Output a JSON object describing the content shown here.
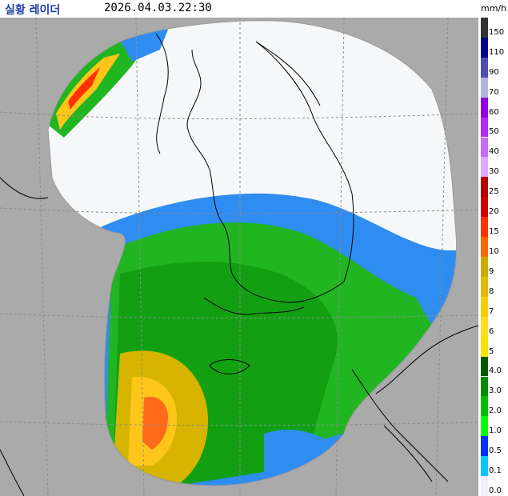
{
  "header": {
    "title": "실황 레이더",
    "timestamp": "2026.04.03.22:30"
  },
  "legend": {
    "unit": "mm/h",
    "entries": [
      {
        "label": "150",
        "color": "#333333"
      },
      {
        "label": "110",
        "color": "#000390"
      },
      {
        "label": "90",
        "color": "#4c4eb1"
      },
      {
        "label": "70",
        "color": "#b3b4de"
      },
      {
        "label": "60",
        "color": "#9300e4"
      },
      {
        "label": "50",
        "color": "#b329ff"
      },
      {
        "label": "40",
        "color": "#c969ff"
      },
      {
        "label": "30",
        "color": "#e0a9ff"
      },
      {
        "label": "25",
        "color": "#b40000"
      },
      {
        "label": "20",
        "color": "#d20000"
      },
      {
        "label": "15",
        "color": "#ff3200"
      },
      {
        "label": "10",
        "color": "#ff6600"
      },
      {
        "label": "9",
        "color": "#ccaa00"
      },
      {
        "label": "8",
        "color": "#e0b900"
      },
      {
        "label": "7",
        "color": "#f9cd00"
      },
      {
        "label": "6",
        "color": "#ffdc1f"
      },
      {
        "label": "5",
        "color": "#ffe100"
      },
      {
        "label": "4.0",
        "color": "#005a00"
      },
      {
        "label": "3.0",
        "color": "#008c00"
      },
      {
        "label": "2.0",
        "color": "#00be00"
      },
      {
        "label": "1.0",
        "color": "#00ff00"
      },
      {
        "label": "0.5",
        "color": "#0033f5"
      },
      {
        "label": "0.1",
        "color": "#00c8ff"
      },
      {
        "label": "0.0",
        "color": "#eeeeff"
      }
    ]
  },
  "colors": {
    "background": "#aaaaaa",
    "radar_no_echo": "#f6f7f8",
    "grid": "#8c8c8c",
    "coastline": "#000000",
    "title": "#1f3ea8"
  }
}
